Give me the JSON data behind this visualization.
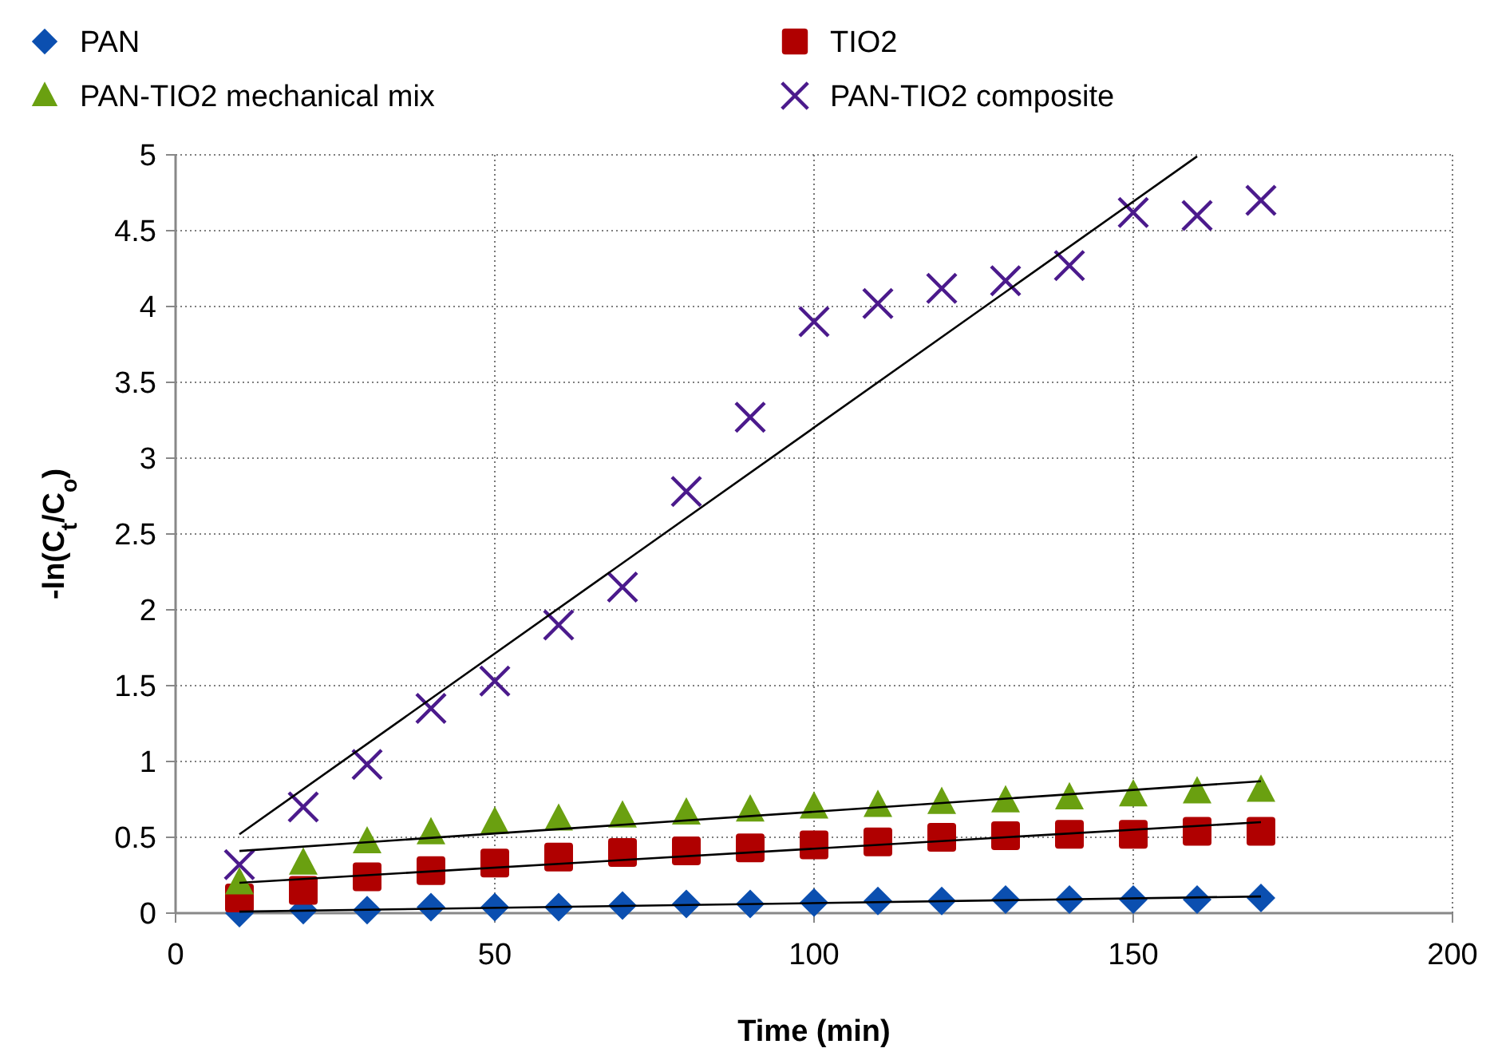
{
  "chart_data": {
    "type": "scatter",
    "xlabel": "Time (min)",
    "ylabel": "-ln(C$_{t}$/C$_{o}$)",
    "x": [
      10,
      20,
      30,
      40,
      50,
      60,
      70,
      80,
      90,
      100,
      110,
      120,
      130,
      140,
      150,
      160,
      170
    ],
    "xlim": [
      0,
      200
    ],
    "xticks": [
      0,
      50,
      100,
      150,
      200
    ],
    "ylim": [
      0,
      5
    ],
    "yticks": [
      0,
      0.5,
      1,
      1.5,
      2,
      2.5,
      3,
      3.5,
      4,
      4.5,
      5
    ],
    "grid": true,
    "legend": "top",
    "series": [
      {
        "name": "PAN",
        "color": "#0b4fb0",
        "marker": "diamond",
        "values": [
          0.0,
          0.02,
          0.02,
          0.04,
          0.04,
          0.04,
          0.05,
          0.06,
          0.06,
          0.07,
          0.08,
          0.08,
          0.09,
          0.09,
          0.09,
          0.09,
          0.1
        ]
      },
      {
        "name": "TIO2",
        "color": "#b00000",
        "marker": "square",
        "values": [
          0.1,
          0.15,
          0.24,
          0.28,
          0.33,
          0.37,
          0.4,
          0.41,
          0.43,
          0.45,
          0.47,
          0.5,
          0.51,
          0.52,
          0.52,
          0.54,
          0.54
        ]
      },
      {
        "name": "PAN-TIO2 mechanical mix",
        "color": "#6aa010",
        "marker": "triangle",
        "values": [
          0.2,
          0.33,
          0.47,
          0.53,
          0.6,
          0.62,
          0.64,
          0.66,
          0.68,
          0.7,
          0.71,
          0.73,
          0.74,
          0.76,
          0.78,
          0.8,
          0.81
        ]
      },
      {
        "name": "PAN-TIO2 composite",
        "color": "#4b1a8c",
        "marker": "cross",
        "values": [
          0.32,
          0.7,
          0.98,
          1.35,
          1.53,
          1.9,
          2.15,
          2.78,
          3.27,
          3.9,
          4.02,
          4.12,
          4.17,
          4.27,
          4.62,
          4.6,
          4.7
        ]
      },
      {
        "type": "line",
        "color": "#000000",
        "marker": "none",
        "x": [
          10,
          170
        ],
        "values": [
          0.01,
          0.11
        ]
      },
      {
        "type": "line",
        "color": "#000000",
        "marker": "none",
        "x": [
          10,
          170
        ],
        "values": [
          0.2,
          0.6
        ]
      },
      {
        "type": "line",
        "color": "#000000",
        "marker": "none",
        "x": [
          10,
          170
        ],
        "values": [
          0.41,
          0.87
        ]
      },
      {
        "type": "line",
        "color": "#000000",
        "marker": "none",
        "x": [
          10,
          160
        ],
        "values": [
          0.52,
          4.99
        ]
      }
    ]
  }
}
